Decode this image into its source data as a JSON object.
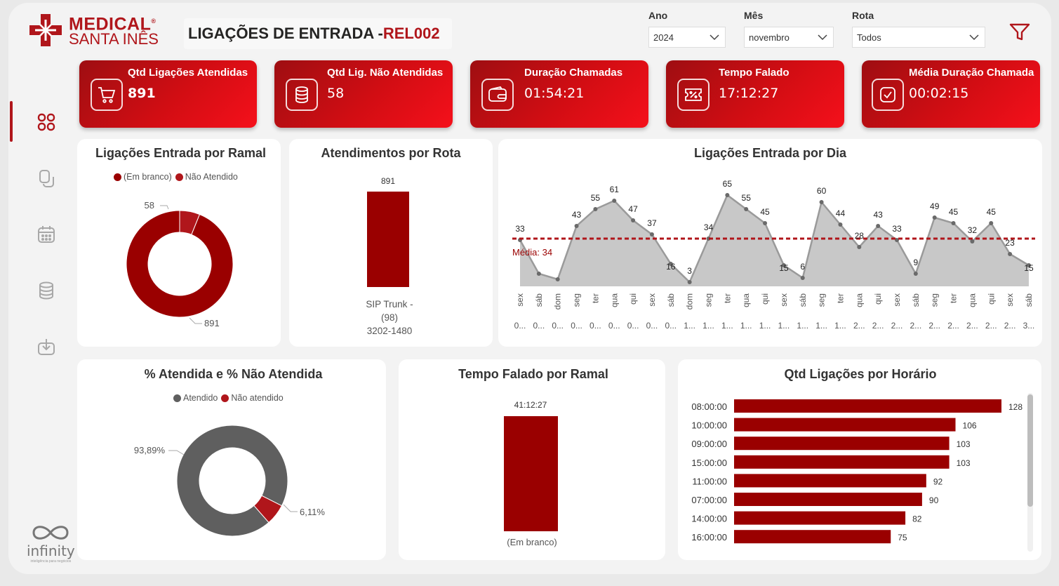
{
  "header": {
    "logo_line1": "MEDICAL",
    "logo_line2": "SANTA INÊS",
    "logo_reg": "®",
    "title_main": "LIGAÇÕES DE ENTRADA - ",
    "title_code": "REL002"
  },
  "filters": {
    "year": {
      "label": "Ano",
      "value": "2024"
    },
    "month": {
      "label": "Mês",
      "value": "novembro"
    },
    "route": {
      "label": "Rota",
      "value": "Todos"
    }
  },
  "kpis": [
    {
      "label": "Qtd Ligações Atendidas",
      "value": "891",
      "icon": "cart-icon"
    },
    {
      "label": "Qtd Lig. Não Atendidas",
      "value": "58",
      "icon": "database-icon"
    },
    {
      "label": "Duração Chamadas",
      "value": "01:54:21",
      "icon": "wallet-icon"
    },
    {
      "label": "Tempo Falado",
      "value": "17:12:27",
      "icon": "ticket-icon"
    },
    {
      "label": "Média Duração Chamada",
      "value": "00:02:15",
      "icon": "check-badge-icon"
    }
  ],
  "sidebar": {
    "items": [
      "dashboard-icon",
      "copy-icon",
      "calendar-icon",
      "database-icon",
      "download-icon"
    ]
  },
  "colors": {
    "accent": "#b0161b",
    "bar": "#9a0000",
    "gray": "#5f5f5f",
    "area": "#c8c8c8"
  },
  "chart_data": [
    {
      "type": "pie",
      "title": "Ligações Entrada por Ramal",
      "legend": [
        "(Em branco)",
        "Não Atendido"
      ],
      "legend_position": "top",
      "slices": [
        {
          "name": "Não Atendido",
          "value": 58
        },
        {
          "name": "(Em branco)",
          "value": 891
        }
      ]
    },
    {
      "type": "bar",
      "title": "Atendimentos por Rota",
      "categories": [
        "SIP Trunk - (98) 3202-1480"
      ],
      "values": [
        891
      ]
    },
    {
      "type": "area",
      "title": "Ligações Entrada por Dia",
      "average_label": "Média: 34",
      "average": 34,
      "weekdays": [
        "sex",
        "sáb",
        "dom",
        "seg",
        "ter",
        "qua",
        "qui",
        "sex",
        "sáb",
        "dom",
        "seg",
        "ter",
        "qua",
        "qui",
        "sex",
        "sáb",
        "seg",
        "ter",
        "qua",
        "qui",
        "sex",
        "sáb",
        "seg",
        "ter",
        "qua",
        "qui",
        "sex",
        "sáb"
      ],
      "dates": [
        "0...",
        "0...",
        "0...",
        "0...",
        "0...",
        "0...",
        "0...",
        "0...",
        "0...",
        "1...",
        "1...",
        "1...",
        "1...",
        "1...",
        "1...",
        "1...",
        "1...",
        "1...",
        "2...",
        "2...",
        "2...",
        "2...",
        "2...",
        "2...",
        "2...",
        "2...",
        "2...",
        "3..."
      ],
      "values": [
        33,
        9,
        5,
        43,
        55,
        61,
        47,
        37,
        16,
        3,
        34,
        65,
        55,
        45,
        15,
        6,
        60,
        44,
        28,
        43,
        33,
        9,
        49,
        45,
        32,
        45,
        23,
        15
      ],
      "labels": [
        "33",
        "",
        "",
        "43",
        "55",
        "61",
        "47",
        "37",
        "16",
        "3",
        "34",
        "65",
        "55",
        "45",
        "15",
        "6",
        "60",
        "44",
        "28",
        "43",
        "33",
        "9",
        "49",
        "45",
        "32",
        "45",
        "23",
        "15"
      ],
      "ylim": [
        0,
        75
      ]
    },
    {
      "type": "pie",
      "title": "% Atendida e % Não Atendida",
      "legend": [
        "Atendido",
        "Não atendido"
      ],
      "legend_position": "top",
      "slices": [
        {
          "name": "Atendido",
          "value": 93.89,
          "label": "93,89%"
        },
        {
          "name": "Não atendido",
          "value": 6.11,
          "label": "6,11%"
        }
      ]
    },
    {
      "type": "bar",
      "title": "Tempo Falado por Ramal",
      "categories": [
        "(Em branco)"
      ],
      "values": [
        148347
      ],
      "value_labels": [
        "41:12:27"
      ]
    },
    {
      "type": "bar",
      "orientation": "horizontal",
      "title": "Qtd Ligações por Horário",
      "categories": [
        "08:00:00",
        "10:00:00",
        "09:00:00",
        "15:00:00",
        "11:00:00",
        "07:00:00",
        "14:00:00",
        "16:00:00"
      ],
      "values": [
        128,
        106,
        103,
        103,
        92,
        90,
        82,
        75
      ],
      "xlim": [
        0,
        128
      ]
    }
  ],
  "brand": {
    "footer_name": "infinity",
    "footer_tagline": "inteligência para negócios"
  }
}
